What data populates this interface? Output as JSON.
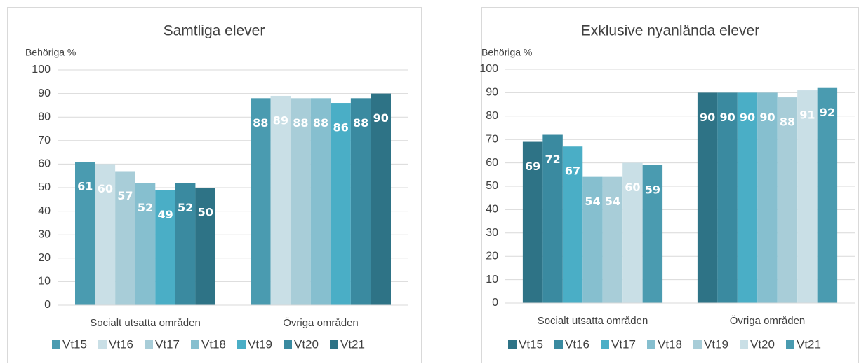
{
  "chart_data": [
    {
      "type": "bar",
      "title": "Samtliga elever",
      "ylabel": "Behöriga %",
      "categories": [
        "Socialt utsatta områden",
        "Övriga områden"
      ],
      "series": [
        {
          "name": "Vt15",
          "color": "#4a9bb0",
          "values": [
            61,
            88
          ]
        },
        {
          "name": "Vt16",
          "color": "#c9dfe6",
          "values": [
            60,
            89
          ]
        },
        {
          "name": "Vt17",
          "color": "#a8cdd8",
          "values": [
            57,
            88
          ]
        },
        {
          "name": "Vt18",
          "color": "#86bfcf",
          "values": [
            52,
            88
          ]
        },
        {
          "name": "Vt19",
          "color": "#4aaec6",
          "values": [
            49,
            86
          ]
        },
        {
          "name": "Vt20",
          "color": "#3a8aa0",
          "values": [
            52,
            88
          ]
        },
        {
          "name": "Vt21",
          "color": "#2e7386",
          "values": [
            50,
            90
          ]
        }
      ],
      "ylim": [
        0,
        100
      ],
      "yticks": [
        0,
        10,
        20,
        30,
        40,
        50,
        60,
        70,
        80,
        90,
        100
      ],
      "grid": true,
      "legend": "bottom"
    },
    {
      "type": "bar",
      "title": "Exklusive nyanlända elever",
      "ylabel": "Behöriga %",
      "categories": [
        "Socialt utsatta områden",
        "Övriga områden"
      ],
      "series": [
        {
          "name": "Vt15",
          "color": "#2e7386",
          "values": [
            69,
            90
          ]
        },
        {
          "name": "Vt16",
          "color": "#3a8aa0",
          "values": [
            72,
            90
          ]
        },
        {
          "name": "Vt17",
          "color": "#4aaec6",
          "values": [
            67,
            90
          ]
        },
        {
          "name": "Vt18",
          "color": "#86bfcf",
          "values": [
            54,
            90
          ]
        },
        {
          "name": "Vt19",
          "color": "#a8cdd8",
          "values": [
            54,
            88
          ]
        },
        {
          "name": "Vt20",
          "color": "#c9dfe6",
          "values": [
            60,
            91
          ]
        },
        {
          "name": "Vt21",
          "color": "#4a9bb0",
          "values": [
            59,
            92
          ]
        }
      ],
      "ylim": [
        0,
        100
      ],
      "yticks": [
        0,
        10,
        20,
        30,
        40,
        50,
        60,
        70,
        80,
        90,
        100
      ],
      "grid": true,
      "legend": "bottom"
    }
  ]
}
